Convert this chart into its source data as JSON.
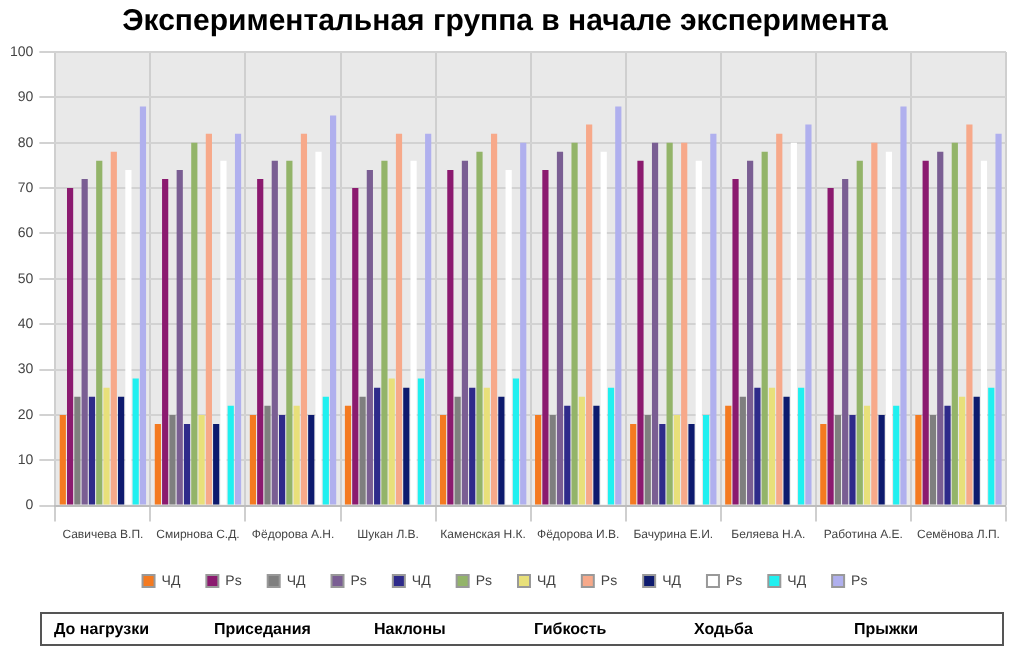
{
  "chart_data": {
    "type": "bar",
    "title": "Экспериментальная группа в начале эксперимента",
    "categories": [
      "Савичева В.П.",
      "Смирнова С.Д.",
      "Фёдорова А.Н.",
      "Шукан Л.В.",
      "Каменская Н.К.",
      "Фёдорова И.В.",
      "Бачурина Е.И.",
      "Беляева Н.А.",
      "Работина А.Е.",
      "Семёнова Л.П."
    ],
    "series": [
      {
        "name": "ЧД",
        "color": "#f47a20",
        "values": [
          20,
          18,
          20,
          22,
          20,
          20,
          18,
          22,
          18,
          20
        ]
      },
      {
        "name": "Ps",
        "color": "#8b1a6f",
        "values": [
          70,
          72,
          72,
          70,
          74,
          74,
          76,
          72,
          70,
          76
        ]
      },
      {
        "name": "ЧД",
        "color": "#7f7f7f",
        "values": [
          24,
          20,
          22,
          24,
          24,
          20,
          20,
          24,
          20,
          20
        ]
      },
      {
        "name": "Ps",
        "color": "#7a5e93",
        "values": [
          72,
          74,
          76,
          74,
          76,
          78,
          80,
          76,
          72,
          78
        ]
      },
      {
        "name": "ЧД",
        "color": "#2e2a8a",
        "values": [
          24,
          18,
          20,
          26,
          26,
          22,
          18,
          26,
          20,
          22
        ]
      },
      {
        "name": "Ps",
        "color": "#93b469",
        "values": [
          76,
          80,
          76,
          76,
          78,
          80,
          80,
          78,
          76,
          80
        ]
      },
      {
        "name": "ЧД",
        "color": "#e8e07a",
        "values": [
          26,
          20,
          22,
          28,
          26,
          24,
          20,
          26,
          22,
          24
        ]
      },
      {
        "name": "Ps",
        "color": "#f7a98a",
        "values": [
          78,
          82,
          82,
          82,
          82,
          84,
          80,
          82,
          80,
          84
        ]
      },
      {
        "name": "ЧД",
        "color": "#0d1a6e",
        "values": [
          24,
          18,
          20,
          26,
          24,
          22,
          18,
          24,
          20,
          24
        ]
      },
      {
        "name": "Ps",
        "color": "#ffffff",
        "values": [
          74,
          76,
          78,
          76,
          74,
          78,
          76,
          80,
          78,
          76
        ]
      },
      {
        "name": "ЧД",
        "color": "#20f0f0",
        "values": [
          28,
          22,
          24,
          28,
          28,
          26,
          20,
          26,
          22,
          26
        ]
      },
      {
        "name": "Ps",
        "color": "#b0b0ee",
        "values": [
          88,
          82,
          86,
          82,
          80,
          88,
          82,
          84,
          88,
          82
        ]
      }
    ],
    "ylim": [
      0,
      100
    ],
    "yticks": [
      0,
      10,
      20,
      30,
      40,
      50,
      60,
      70,
      80,
      90,
      100
    ],
    "grid": true,
    "legend": "bottom",
    "annotations": [
      "До нагрузки",
      "Приседания",
      "Наклоны",
      "Гибкость",
      "Ходьба",
      "Прыжки"
    ]
  }
}
